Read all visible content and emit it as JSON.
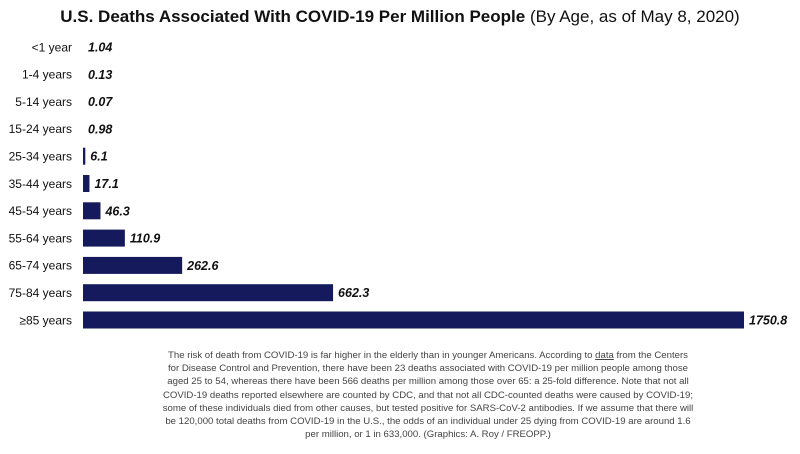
{
  "title": {
    "main": "U.S. Deaths Associated With COVID-19 Per Million People",
    "qualifier": "(By Age, as of May 8, 2020)"
  },
  "chart_data": {
    "type": "bar",
    "orientation": "horizontal",
    "title": "U.S. Deaths Associated With COVID-19 Per Million People (By Age, as of May 8, 2020)",
    "xlabel": "",
    "ylabel": "",
    "grid": false,
    "legend": "none",
    "bar_color": "#141a5c",
    "categories": [
      "<1 year",
      "1-4 years",
      "5-14 years",
      "15-24 years",
      "25-34 years",
      "35-44 years",
      "45-54 years",
      "55-64 years",
      "65-74 years",
      "75-84 years",
      "≥85 years"
    ],
    "values": [
      1.04,
      0.13,
      0.07,
      0.98,
      6.1,
      17.1,
      46.3,
      110.9,
      262.6,
      662.3,
      1750.8
    ],
    "value_labels": [
      "1.04",
      "0.13",
      "0.07",
      "0.98",
      "6.1",
      "17.1",
      "46.3",
      "110.9",
      "262.6",
      "662.3",
      "1750.8"
    ],
    "xlim": [
      0,
      1750.8
    ]
  },
  "caption": {
    "before_link": "The risk of death from COVID-19 is far higher in the elderly than in younger Americans. According to ",
    "link_text": "data",
    "after_link": " from the Centers for Disease Control and Prevention, there have been 23 deaths associated with COVID-19 per million people among those aged 25 to 54, whereas there have been 566 deaths per million among those over 65: a 25-fold difference. Note that not all COVID-19 deaths reported elsewhere are counted by CDC, and that not all CDC-counted deaths were caused by COVID-19; some of these individuals died from other causes, but tested positive for SARS-CoV-2 antibodies. If we assume that there will be 120,000 total deaths from COVID-19 in the U.S., the odds of an individual under 25 dying from COVID-19 are around 1.6 per million, or 1 in 633,000. (Graphics: A. Roy / FREOPP.)"
  }
}
